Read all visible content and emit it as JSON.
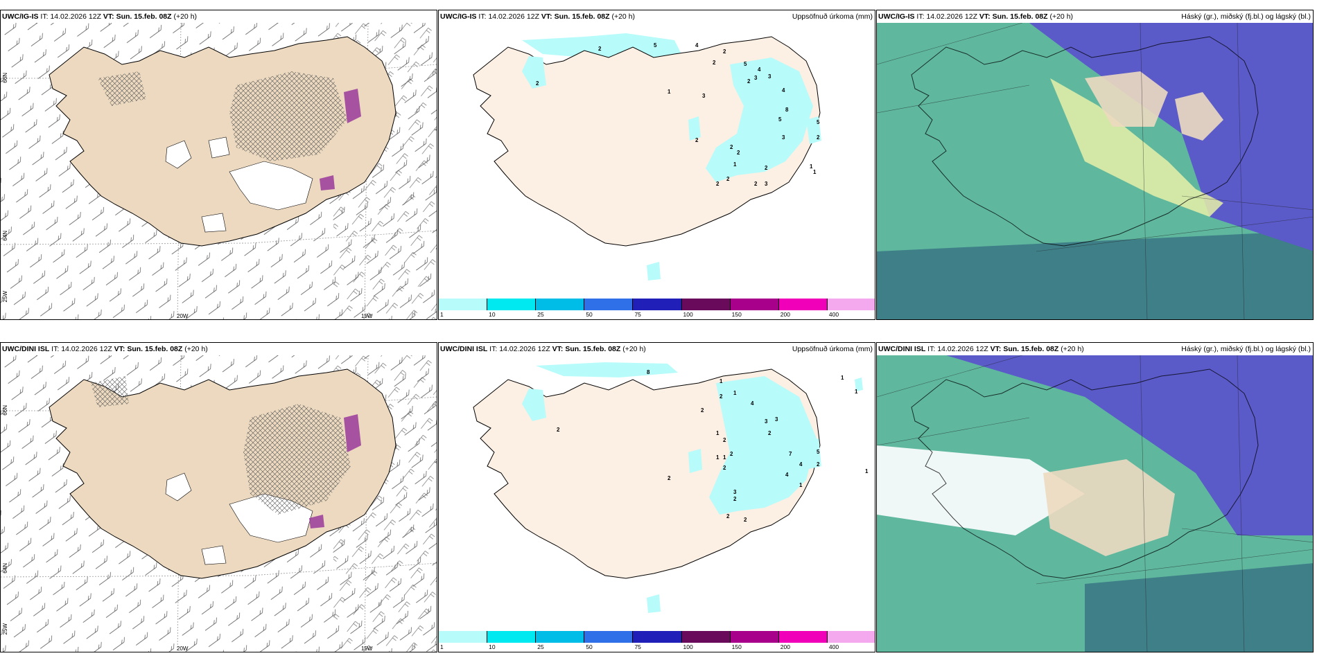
{
  "rows": [
    {
      "model": "UWC/IG-IS",
      "it_label": "IT:",
      "it_value": "14.02.2026 12Z",
      "vt_label": "VT:",
      "vt_value": "Sun. 15.feb. 08Z",
      "lead": "(+20 h)"
    },
    {
      "model": "UWC/DINI ISL",
      "it_label": "IT:",
      "it_value": "14.02.2026 12Z",
      "vt_label": "VT:",
      "vt_value": "Sun. 15.feb. 08Z",
      "lead": "(+20 h)"
    }
  ],
  "titles": {
    "precip": "Uppsöfnuð úrkoma (mm)",
    "cloud": "Háský (gr.), miðský (fj.bl.) og lágský (bl.)"
  },
  "axis_labels": {
    "lat66": "66N",
    "lat64": "64N",
    "lon25": "25W",
    "lon20": "20W",
    "lon15": "15W"
  },
  "colorbar": {
    "labels": [
      "1",
      "10",
      "25",
      "50",
      "75",
      "100",
      "150",
      "200",
      "400"
    ],
    "colors": [
      "#b8fbfb",
      "#00e8f0",
      "#00bde8",
      "#2f6fe8",
      "#2020b8",
      "#6a0a5a",
      "#a8008a",
      "#f000b8",
      "#f4a8ee"
    ]
  },
  "precip_values": {
    "top": [
      "2",
      "5",
      "4",
      "2",
      "2",
      "5",
      "4",
      "3",
      "3",
      "2",
      "1",
      "3",
      "4",
      "8",
      "5",
      "3",
      "2",
      "2",
      "2",
      "1",
      "2",
      "2",
      "2",
      "3",
      "2",
      "1",
      "5",
      "2",
      "1",
      "2"
    ],
    "bottom": [
      "8",
      "1",
      "1",
      "2",
      "2",
      "4",
      "3",
      "3",
      "2",
      "1",
      "2",
      "2",
      "1",
      "1",
      "2",
      "7",
      "4",
      "4",
      "5",
      "2",
      "1",
      "1",
      "1",
      "2",
      "3",
      "2",
      "2",
      "2",
      "1",
      "2"
    ]
  },
  "colors": {
    "land": "#ecd9c0",
    "precip_land": "#fcefe3",
    "light_precip": "#b8fbfb",
    "sea_cloud": "#5fb89e",
    "high_cloud": "#5a5ac8",
    "low_cloud_dark": "#3f7f88"
  }
}
